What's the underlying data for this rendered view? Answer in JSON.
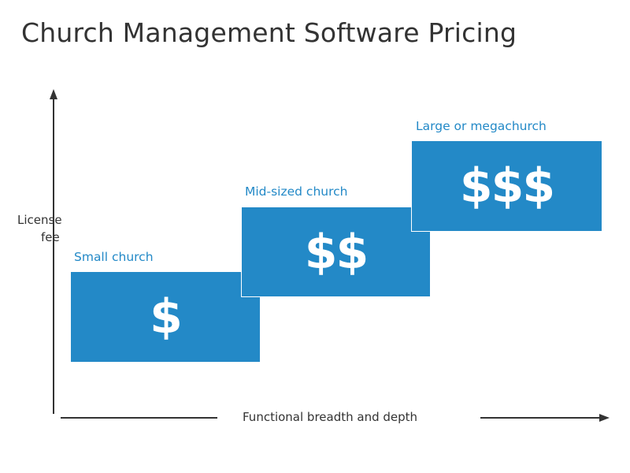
{
  "title": "Church Management Software Pricing",
  "axes": {
    "y_label_line1": "License",
    "y_label_line2": "fee",
    "x_label": "Functional breadth and depth"
  },
  "tiers": [
    {
      "label": "Small church",
      "price": "$"
    },
    {
      "label": "Mid-sized church",
      "price": "$$"
    },
    {
      "label": "Large or megachurch",
      "price": "$$$"
    }
  ],
  "colors": {
    "accent": "#2389c7",
    "text": "#333333",
    "axis": "#333333"
  }
}
